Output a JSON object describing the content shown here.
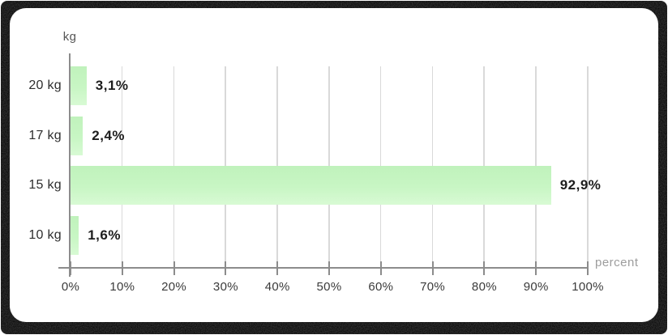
{
  "card": {
    "background": "#ffffff",
    "frame_background": "#070707"
  },
  "axes": {
    "y_title": "kg",
    "x_title": "percent"
  },
  "colors": {
    "bar": "#c6f5c2",
    "bar_gradient_top": "#c0f2bc",
    "bar_gradient_bottom": "#d8fad4",
    "grid": "#d9d9d9",
    "axis": "#8c8c8c",
    "category_label": "#2d2d2d",
    "tick_label": "#3b3b3b",
    "value_label": "#1d1d1d",
    "axis_title_y": "#555555",
    "axis_title_x": "#9d9d9d"
  },
  "chart_data": {
    "type": "bar",
    "orientation": "horizontal",
    "title": "",
    "categories": [
      "20 kg",
      "17 kg",
      "15 kg",
      "10 kg"
    ],
    "values": [
      3.1,
      2.4,
      92.9,
      1.6
    ],
    "value_labels": [
      "3,1%",
      "2,4%",
      "92,9%",
      "1,6%"
    ],
    "x_ticks": [
      "0%",
      "10%",
      "20%",
      "30%",
      "40%",
      "50%",
      "60%",
      "70%",
      "80%",
      "90%",
      "100%"
    ],
    "xlim": [
      0,
      100
    ],
    "xlabel": "percent",
    "ylabel": "kg",
    "grid": "vertical",
    "legend": false
  }
}
